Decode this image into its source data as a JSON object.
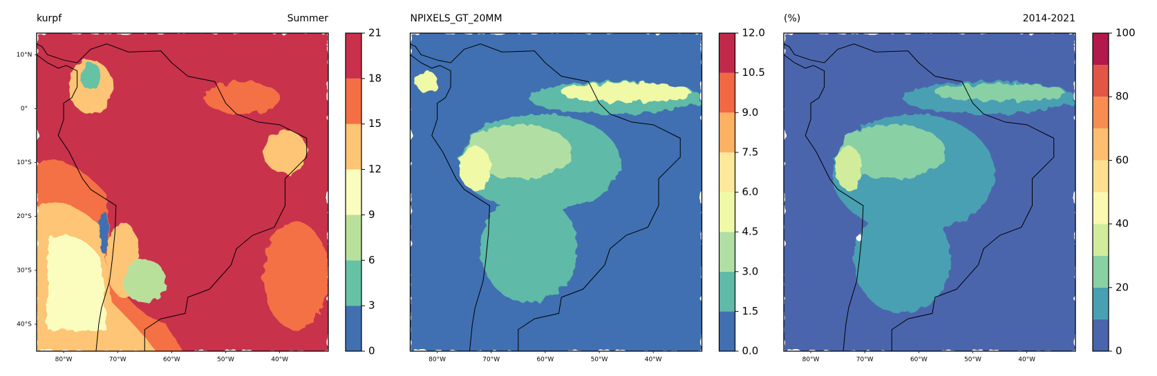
{
  "panels": [
    {
      "title_left": "kurpf",
      "title_right": "Summer",
      "xlim": [
        -85,
        -31
      ],
      "ylim": [
        -45,
        14
      ],
      "xticks": [
        {
          "value": -80,
          "label": "80°W"
        },
        {
          "value": -70,
          "label": "70°W"
        },
        {
          "value": -60,
          "label": "60°W"
        },
        {
          "value": -50,
          "label": "50°W"
        },
        {
          "value": -40,
          "label": "40°W"
        }
      ],
      "yticks": [
        {
          "value": 10,
          "label": "10°N"
        },
        {
          "value": 0,
          "label": "0°"
        },
        {
          "value": -10,
          "label": "10°S"
        },
        {
          "value": -20,
          "label": "20°S"
        },
        {
          "value": -30,
          "label": "30°S"
        },
        {
          "value": -40,
          "label": "40°S"
        }
      ],
      "colorbar": {
        "levels": [
          0,
          3,
          6,
          9,
          12,
          15,
          18,
          21
        ],
        "ticks": [
          0,
          3,
          6,
          9,
          12,
          15,
          18,
          21
        ],
        "colors": [
          "#4170b1",
          "#66c2a5",
          "#b9e09b",
          "#fbfdbf",
          "#fdc574",
          "#f47044",
          "#c8304b"
        ]
      }
    },
    {
      "title_left": "NPIXELS_GT_20MM",
      "xlim": [
        -85,
        -31
      ],
      "ylim": [
        -45,
        14
      ],
      "xticks": [
        {
          "value": -80,
          "label": "80°W"
        },
        {
          "value": -70,
          "label": "70°W"
        },
        {
          "value": -60,
          "label": "60°W"
        },
        {
          "value": -50,
          "label": "50°W"
        },
        {
          "value": -40,
          "label": "40°W"
        }
      ],
      "colorbar": {
        "levels": [
          0,
          1.5,
          3,
          4.5,
          6,
          7.5,
          9,
          10.5,
          12
        ],
        "ticks": [
          {
            "value": 0,
            "label": "0.0"
          },
          1.5,
          {
            "value": 3,
            "label": "3.0"
          },
          4.5,
          {
            "value": 6,
            "label": "6.0"
          },
          7.5,
          {
            "value": 9,
            "label": "9.0"
          },
          10.5,
          {
            "value": 12,
            "label": "12.0"
          }
        ],
        "colors": [
          "#4170b1",
          "#5fbaa8",
          "#b1dfa3",
          "#eff9a6",
          "#fee99a",
          "#fdb163",
          "#f16843",
          "#c1294a"
        ]
      }
    },
    {
      "title_left": "(%)",
      "title_right": "2014-2021",
      "xlim": [
        -85,
        -31
      ],
      "ylim": [
        -45,
        14
      ],
      "xticks": [
        {
          "value": -80,
          "label": "80°W"
        },
        {
          "value": -70,
          "label": "70°W"
        },
        {
          "value": -60,
          "label": "60°W"
        },
        {
          "value": -50,
          "label": "50°W"
        },
        {
          "value": -40,
          "label": "40°W"
        }
      ],
      "colorbar": {
        "levels": [
          0,
          10,
          20,
          30,
          40,
          50,
          60,
          70,
          80,
          90,
          100
        ],
        "ticks": [
          0,
          20,
          40,
          60,
          80,
          100
        ],
        "colors": [
          "#4b65ad",
          "#48a0b2",
          "#89d0a4",
          "#d1ed9c",
          "#fbf8b0",
          "#fee090",
          "#fdbf6f",
          "#f88d52",
          "#e25645",
          "#b3194a"
        ]
      }
    }
  ]
}
